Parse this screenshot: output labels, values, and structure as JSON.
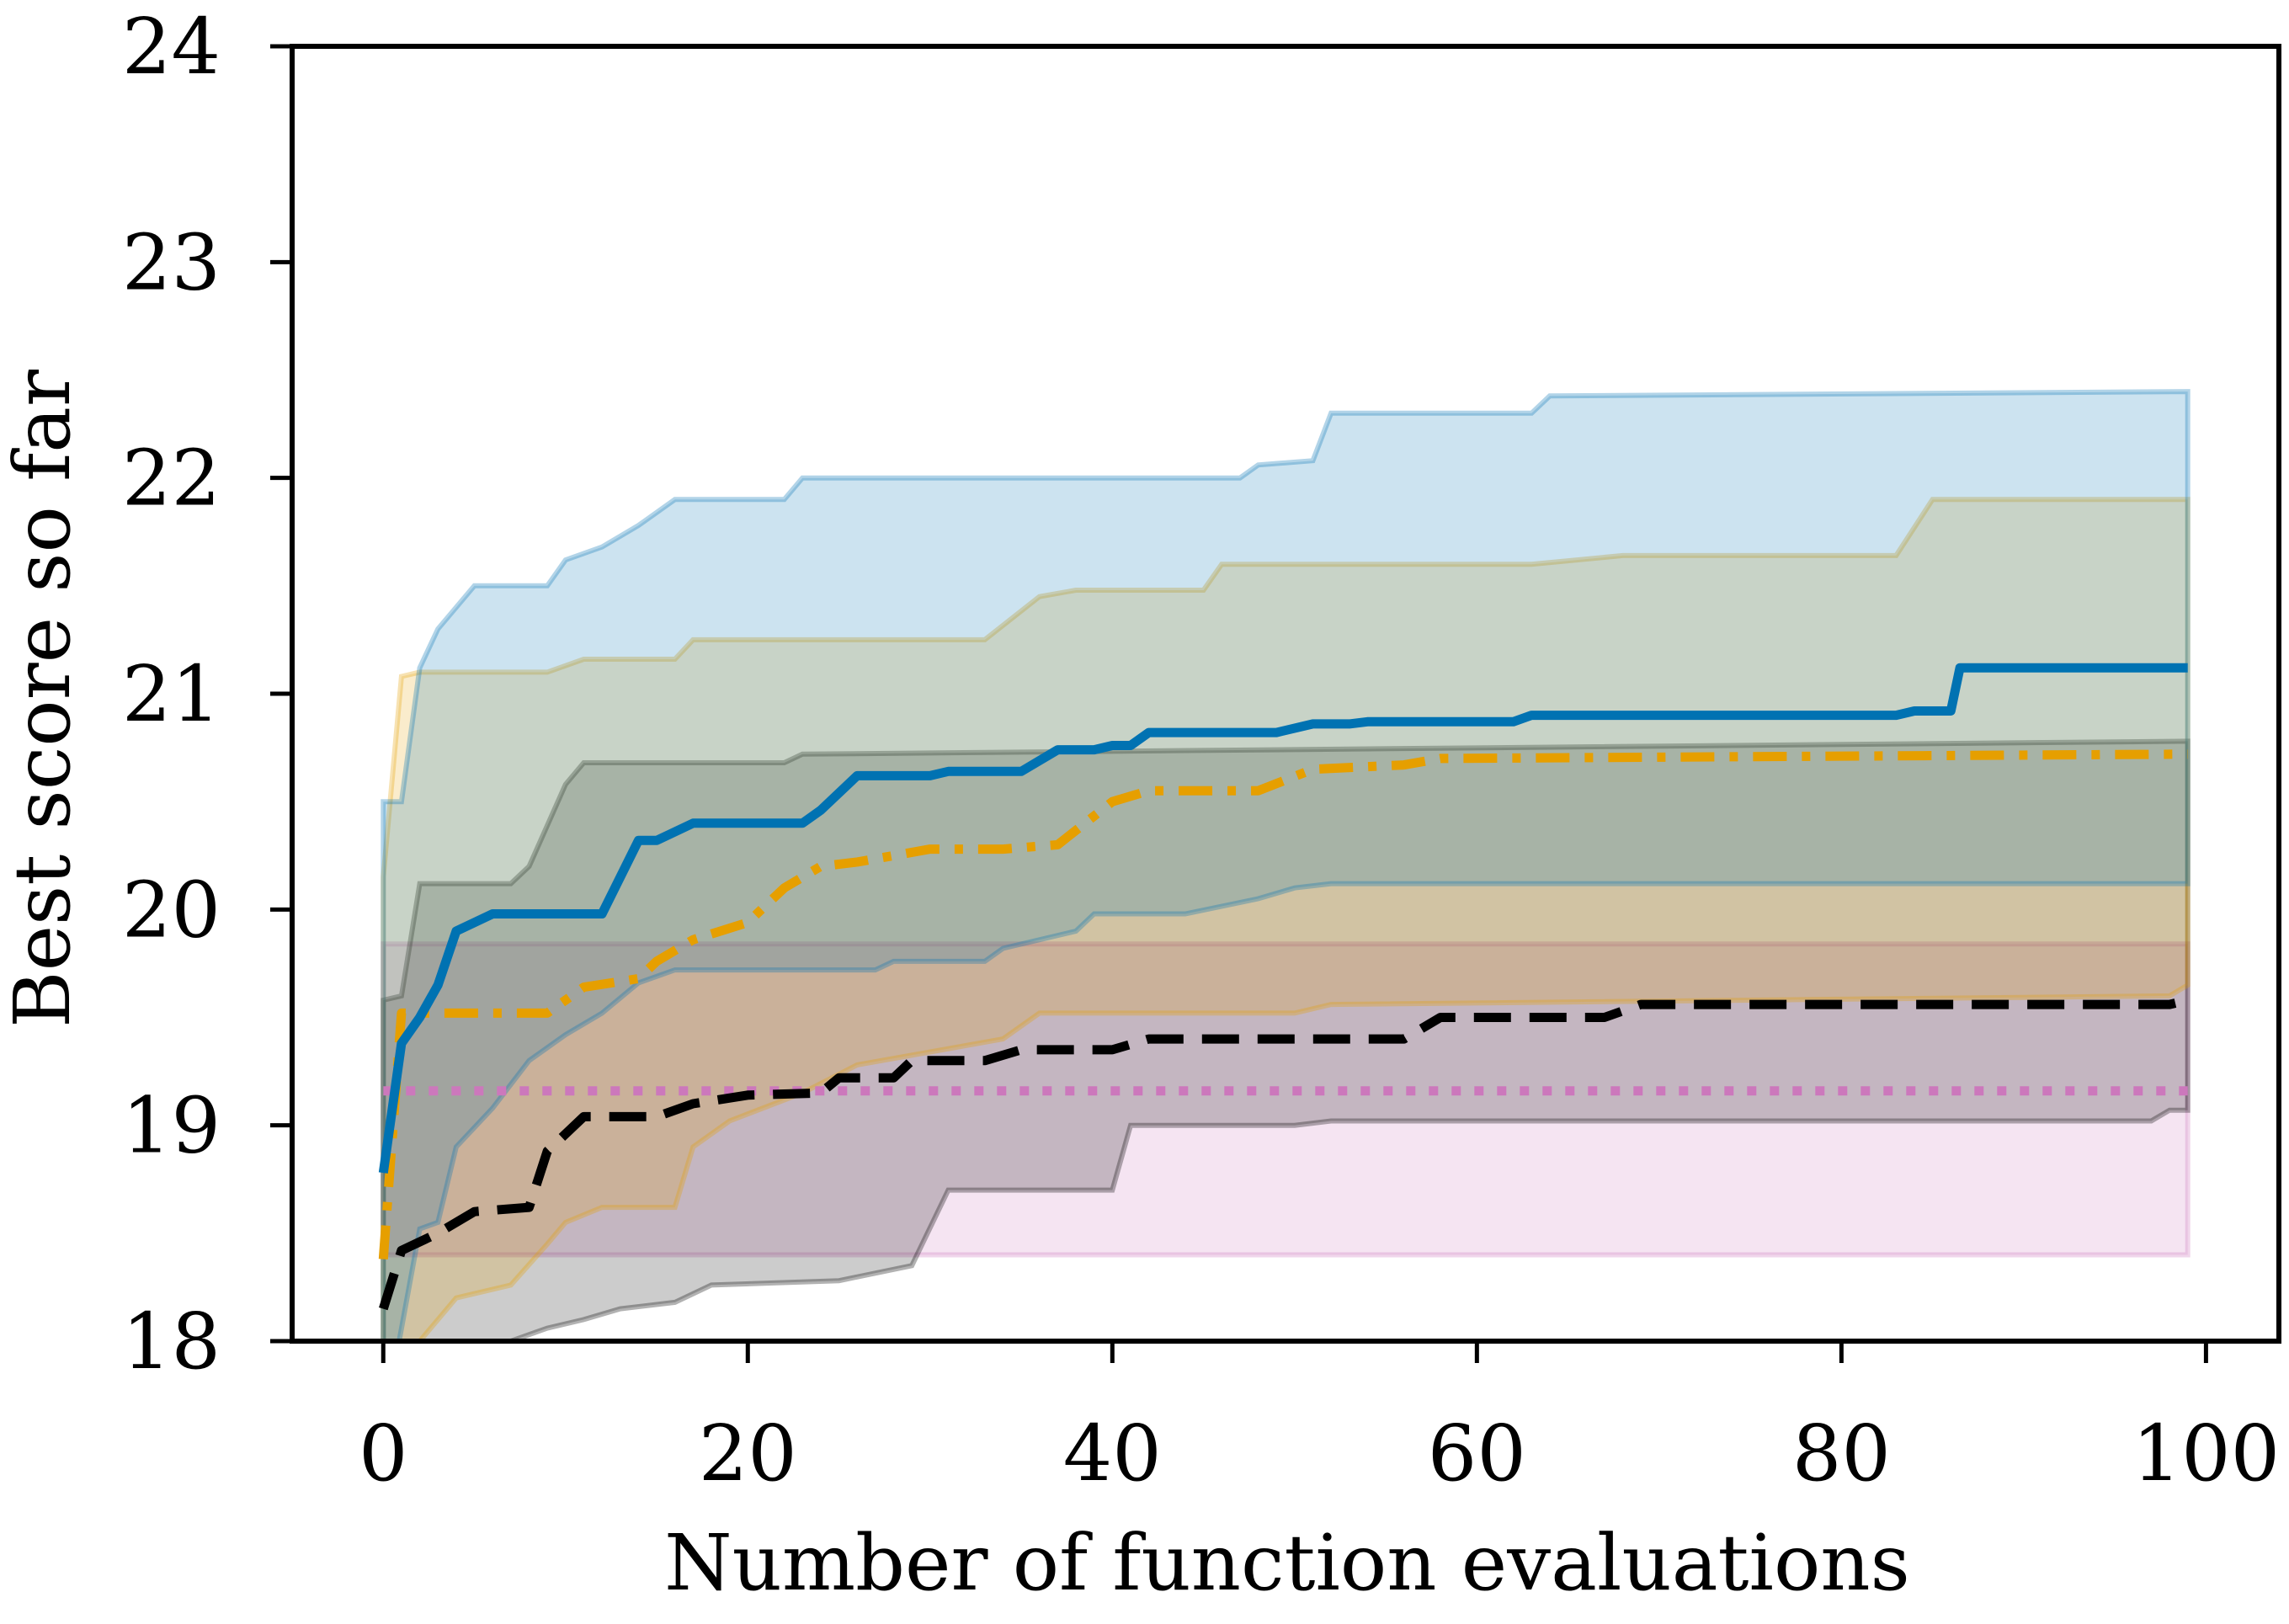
{
  "chart_data": {
    "type": "line",
    "title": "",
    "xlabel": "Number of function evaluations",
    "ylabel": "Best score so far",
    "xlim": [
      -5,
      104
    ],
    "ylim": [
      18,
      24
    ],
    "xticks": [
      0,
      20,
      40,
      60,
      80,
      100
    ],
    "yticks": [
      18,
      19,
      20,
      21,
      22,
      23,
      24
    ],
    "grid": false,
    "legend": null,
    "series": [
      {
        "name": "pink-dotted",
        "color": "#cc78bc",
        "style": "dotted",
        "mean": [
          [
            0,
            19.16
          ],
          [
            99,
            19.16
          ]
        ],
        "lower": [
          [
            0,
            18.4
          ],
          [
            99,
            18.4
          ]
        ],
        "upper": [
          [
            0,
            19.84
          ],
          [
            99,
            19.84
          ]
        ]
      },
      {
        "name": "black-dashed",
        "color": "#000000",
        "style": "dashed",
        "mean": [
          [
            0,
            18.15
          ],
          [
            1,
            18.42
          ],
          [
            3,
            18.5
          ],
          [
            5,
            18.6
          ],
          [
            8,
            18.62
          ],
          [
            9,
            18.88
          ],
          [
            11,
            19.04
          ],
          [
            15,
            19.04
          ],
          [
            17,
            19.1
          ],
          [
            20,
            19.14
          ],
          [
            24,
            19.15
          ],
          [
            25,
            19.22
          ],
          [
            28,
            19.22
          ],
          [
            29,
            19.3
          ],
          [
            33,
            19.3
          ],
          [
            35,
            19.35
          ],
          [
            40,
            19.35
          ],
          [
            42,
            19.4
          ],
          [
            56,
            19.4
          ],
          [
            58,
            19.5
          ],
          [
            67,
            19.5
          ],
          [
            69,
            19.56
          ],
          [
            98,
            19.56
          ],
          [
            99,
            19.58
          ]
        ],
        "lower": [
          [
            0,
            17.5
          ],
          [
            5,
            17.9
          ],
          [
            7,
            18.0
          ],
          [
            9,
            18.06
          ],
          [
            11,
            18.1
          ],
          [
            13,
            18.15
          ],
          [
            16,
            18.18
          ],
          [
            18,
            18.26
          ],
          [
            25,
            18.28
          ],
          [
            29,
            18.35
          ],
          [
            31,
            18.7
          ],
          [
            40,
            18.7
          ],
          [
            41,
            19.0
          ],
          [
            50,
            19.0
          ],
          [
            52,
            19.02
          ],
          [
            97,
            19.02
          ],
          [
            98,
            19.07
          ],
          [
            99,
            19.07
          ]
        ],
        "upper": [
          [
            0,
            19.58
          ],
          [
            1,
            19.6
          ],
          [
            2,
            20.12
          ],
          [
            7,
            20.12
          ],
          [
            8,
            20.2
          ],
          [
            10,
            20.58
          ],
          [
            11,
            20.68
          ],
          [
            22,
            20.68
          ],
          [
            23,
            20.72
          ],
          [
            99,
            20.78
          ]
        ]
      },
      {
        "name": "orange-dashdot",
        "color": "#e69f00",
        "style": "dashdot",
        "mean": [
          [
            0,
            18.38
          ],
          [
            1,
            19.52
          ],
          [
            9,
            19.52
          ],
          [
            11,
            19.64
          ],
          [
            14,
            19.68
          ],
          [
            15,
            19.76
          ],
          [
            17,
            19.86
          ],
          [
            20,
            19.94
          ],
          [
            22,
            20.1
          ],
          [
            24,
            20.2
          ],
          [
            26,
            20.22
          ],
          [
            28,
            20.25
          ],
          [
            30,
            20.28
          ],
          [
            34,
            20.28
          ],
          [
            37,
            20.3
          ],
          [
            40,
            20.5
          ],
          [
            42,
            20.55
          ],
          [
            48,
            20.55
          ],
          [
            51,
            20.65
          ],
          [
            56,
            20.67
          ],
          [
            58,
            20.7
          ],
          [
            99,
            20.72
          ]
        ],
        "lower": [
          [
            0,
            17.8
          ],
          [
            2,
            18.0
          ],
          [
            4,
            18.2
          ],
          [
            7,
            18.26
          ],
          [
            9,
            18.45
          ],
          [
            10,
            18.55
          ],
          [
            12,
            18.62
          ],
          [
            16,
            18.62
          ],
          [
            17,
            18.9
          ],
          [
            19,
            19.02
          ],
          [
            23,
            19.15
          ],
          [
            26,
            19.28
          ],
          [
            34,
            19.4
          ],
          [
            36,
            19.52
          ],
          [
            50,
            19.52
          ],
          [
            52,
            19.56
          ],
          [
            98,
            19.6
          ],
          [
            99,
            19.65
          ]
        ],
        "upper": [
          [
            0,
            20.15
          ],
          [
            1,
            21.08
          ],
          [
            2,
            21.1
          ],
          [
            9,
            21.1
          ],
          [
            11,
            21.16
          ],
          [
            16,
            21.16
          ],
          [
            17,
            21.25
          ],
          [
            33,
            21.25
          ],
          [
            36,
            21.45
          ],
          [
            38,
            21.48
          ],
          [
            45,
            21.48
          ],
          [
            46,
            21.6
          ],
          [
            63,
            21.6
          ],
          [
            68,
            21.64
          ],
          [
            83,
            21.64
          ],
          [
            85,
            21.9
          ],
          [
            99,
            21.9
          ]
        ]
      },
      {
        "name": "blue-solid",
        "color": "#0072b2",
        "style": "solid",
        "mean": [
          [
            0,
            18.78
          ],
          [
            1,
            19.38
          ],
          [
            2,
            19.5
          ],
          [
            3,
            19.65
          ],
          [
            4,
            19.9
          ],
          [
            6,
            19.98
          ],
          [
            12,
            19.98
          ],
          [
            14,
            20.32
          ],
          [
            15,
            20.32
          ],
          [
            17,
            20.4
          ],
          [
            23,
            20.4
          ],
          [
            24,
            20.46
          ],
          [
            26,
            20.62
          ],
          [
            30,
            20.62
          ],
          [
            31,
            20.64
          ],
          [
            35,
            20.64
          ],
          [
            37,
            20.74
          ],
          [
            39,
            20.74
          ],
          [
            40,
            20.76
          ],
          [
            41,
            20.76
          ],
          [
            42,
            20.82
          ],
          [
            49,
            20.82
          ],
          [
            51,
            20.86
          ],
          [
            53,
            20.86
          ],
          [
            54,
            20.87
          ],
          [
            62,
            20.87
          ],
          [
            63,
            20.9
          ],
          [
            83,
            20.9
          ],
          [
            84,
            20.92
          ],
          [
            86,
            20.92
          ],
          [
            86.5,
            21.12
          ],
          [
            99,
            21.12
          ]
        ],
        "lower": [
          [
            0,
            17.6
          ],
          [
            2,
            18.52
          ],
          [
            3,
            18.55
          ],
          [
            4,
            18.9
          ],
          [
            6,
            19.08
          ],
          [
            8,
            19.3
          ],
          [
            10,
            19.42
          ],
          [
            12,
            19.52
          ],
          [
            14,
            19.66
          ],
          [
            16,
            19.72
          ],
          [
            27,
            19.72
          ],
          [
            28,
            19.76
          ],
          [
            33,
            19.76
          ],
          [
            34,
            19.82
          ],
          [
            38,
            19.9
          ],
          [
            39,
            19.98
          ],
          [
            44,
            19.98
          ],
          [
            48,
            20.05
          ],
          [
            50,
            20.1
          ],
          [
            52,
            20.12
          ],
          [
            86,
            20.12
          ],
          [
            99,
            20.12
          ]
        ],
        "upper": [
          [
            0,
            20.5
          ],
          [
            1,
            20.5
          ],
          [
            2,
            21.12
          ],
          [
            3,
            21.3
          ],
          [
            5,
            21.5
          ],
          [
            9,
            21.5
          ],
          [
            10,
            21.62
          ],
          [
            12,
            21.68
          ],
          [
            14,
            21.78
          ],
          [
            16,
            21.9
          ],
          [
            22,
            21.9
          ],
          [
            23,
            22.0
          ],
          [
            47,
            22.0
          ],
          [
            48,
            22.06
          ],
          [
            51,
            22.08
          ],
          [
            52,
            22.3
          ],
          [
            63,
            22.3
          ],
          [
            64,
            22.38
          ],
          [
            99,
            22.4
          ]
        ]
      }
    ]
  }
}
